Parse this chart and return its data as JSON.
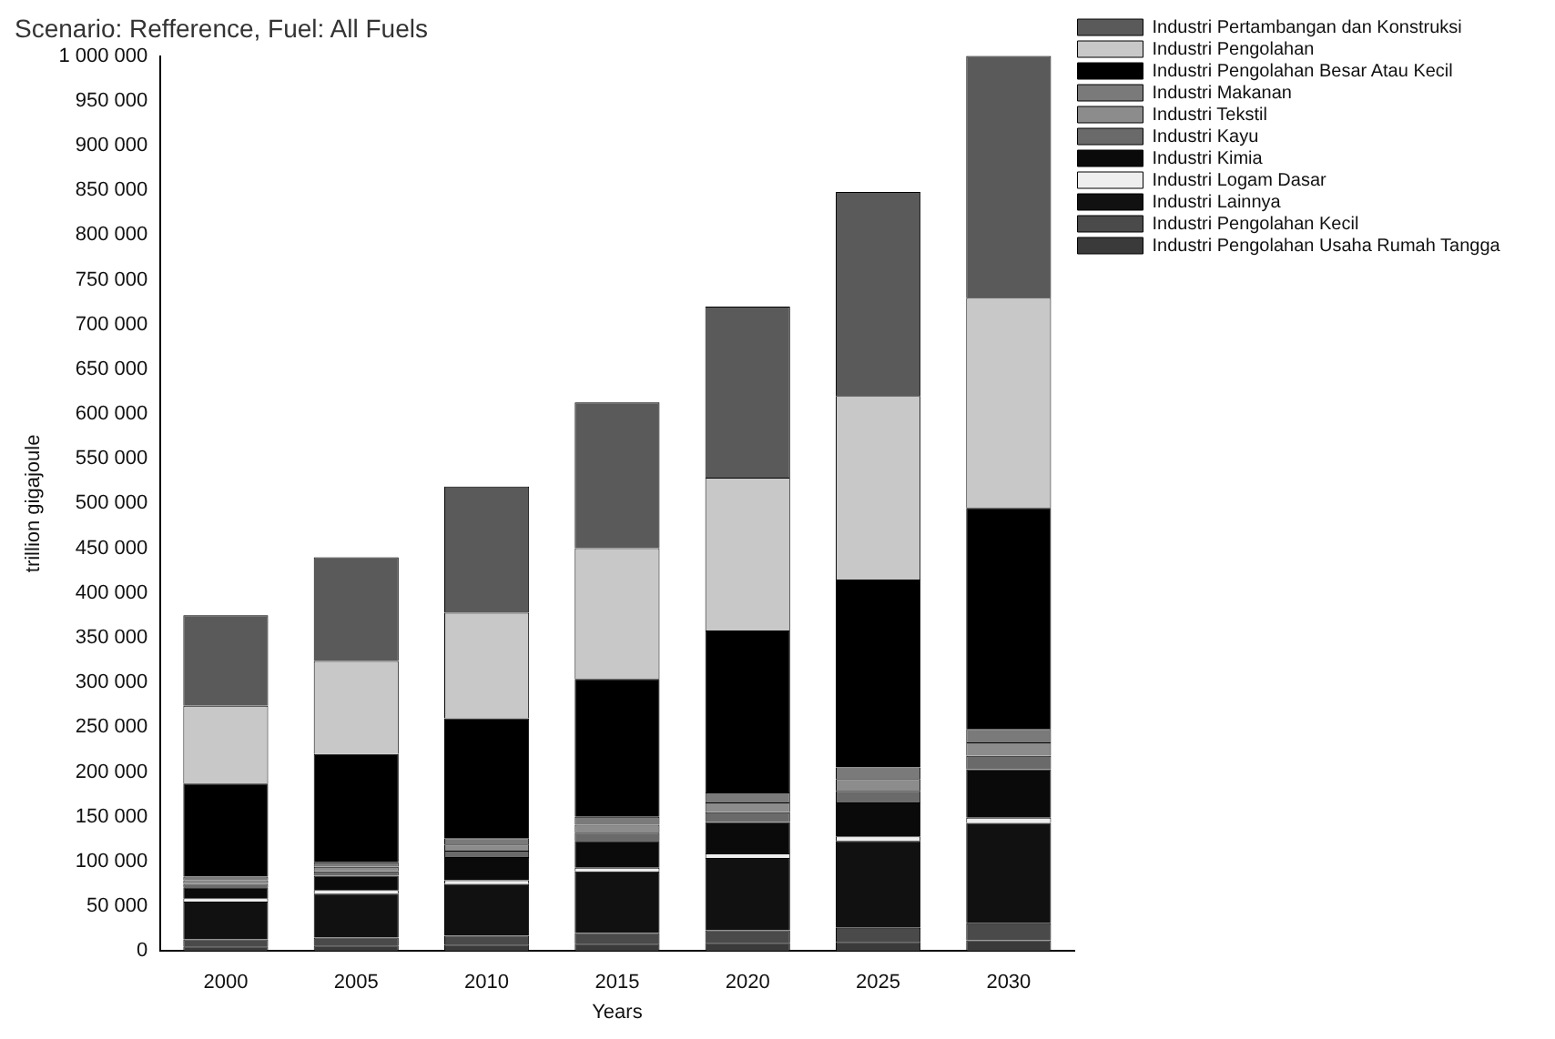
{
  "chart_data": {
    "type": "bar",
    "stacked": true,
    "title": "Scenario: Refference, Fuel: All Fuels",
    "xlabel": "Years",
    "ylabel": "trillion gigajoule",
    "categories": [
      "2000",
      "2005",
      "2010",
      "2015",
      "2020",
      "2025",
      "2030"
    ],
    "ylim": [
      0,
      1000000
    ],
    "yticks": [
      {
        "value": 0,
        "label": "0"
      },
      {
        "value": 50000,
        "label": "50 000"
      },
      {
        "value": 100000,
        "label": "100 000"
      },
      {
        "value": 150000,
        "label": "150 000"
      },
      {
        "value": 200000,
        "label": "200 000"
      },
      {
        "value": 250000,
        "label": "250 000"
      },
      {
        "value": 300000,
        "label": "300 000"
      },
      {
        "value": 350000,
        "label": "350 000"
      },
      {
        "value": 400000,
        "label": "400 000"
      },
      {
        "value": 450000,
        "label": "450 000"
      },
      {
        "value": 500000,
        "label": "500 000"
      },
      {
        "value": 550000,
        "label": "550 000"
      },
      {
        "value": 600000,
        "label": "600 000"
      },
      {
        "value": 650000,
        "label": "650 000"
      },
      {
        "value": 700000,
        "label": "700 000"
      },
      {
        "value": 750000,
        "label": "750 000"
      },
      {
        "value": 800000,
        "label": "800 000"
      },
      {
        "value": 850000,
        "label": "850 000"
      },
      {
        "value": 900000,
        "label": "900 000"
      },
      {
        "value": 950000,
        "label": "950 000"
      },
      {
        "value": 1000000,
        "label": "1 000 000"
      }
    ],
    "grid": false,
    "legend": "top right",
    "series": [
      {
        "name": "Industri Pengolahan Usaha Rumah Tangga",
        "color": "#3a3a3a",
        "values": [
          5000,
          6000,
          7000,
          8000,
          9000,
          10000,
          12000
        ]
      },
      {
        "name": "Industri Pengolahan Kecil",
        "color": "#4a4a4a",
        "values": [
          8000,
          9000,
          10000,
          12000,
          14000,
          16000,
          19000
        ]
      },
      {
        "name": "Industri Lainnya",
        "color": "#111111",
        "values": [
          42000,
          49000,
          58000,
          69000,
          81000,
          97000,
          112000
        ]
      },
      {
        "name": "Industri Logam Dasar",
        "color": "#eeeeee",
        "values": [
          4000,
          4000,
          4000,
          4000,
          5000,
          5000,
          6000
        ]
      },
      {
        "name": "Industri Kimia",
        "color": "#0a0a0a",
        "values": [
          12000,
          16000,
          26000,
          30000,
          35000,
          38000,
          54000
        ]
      },
      {
        "name": "Industri Kayu",
        "color": "#6a6a6a",
        "values": [
          4000,
          5000,
          7000,
          9000,
          11000,
          13000,
          15000
        ]
      },
      {
        "name": "Industri Tekstil",
        "color": "#8c8c8c",
        "values": [
          4000,
          5000,
          7000,
          9000,
          11000,
          13000,
          15000
        ]
      },
      {
        "name": "Industri Makanan",
        "color": "#7a7a7a",
        "values": [
          4000,
          5000,
          7000,
          9000,
          11000,
          13000,
          15000
        ]
      },
      {
        "name": "Industri Pengolahan Besar Atau Kecil",
        "color": "#000000",
        "values": [
          104000,
          121000,
          134000,
          154000,
          181000,
          210000,
          247000
        ]
      },
      {
        "name": "Industri Pengolahan",
        "color": "#c8c8c8",
        "values": [
          87000,
          104000,
          118000,
          146000,
          171000,
          205000,
          235000
        ]
      },
      {
        "name": "Industri Pertambangan dan Konstruksi",
        "color": "#5a5a5a",
        "values": [
          101000,
          116000,
          141000,
          163000,
          191000,
          228000,
          270000
        ]
      }
    ]
  }
}
